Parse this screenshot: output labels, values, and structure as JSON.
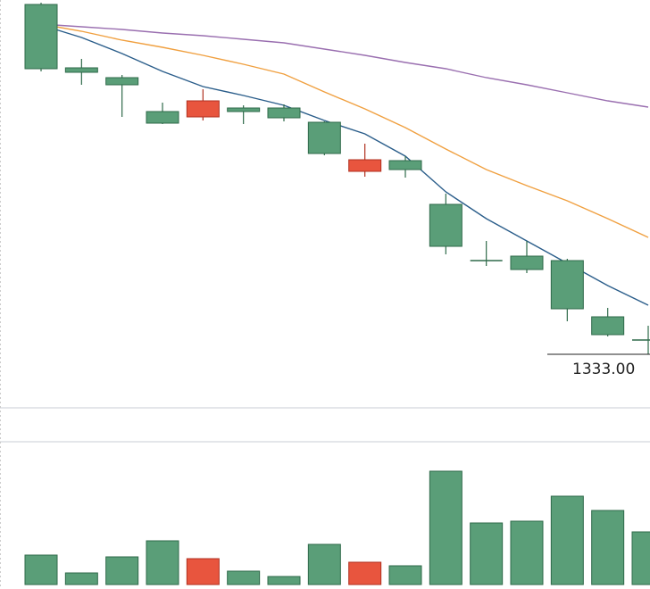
{
  "chart_data": {
    "type": "candlestick",
    "open": [
      1431,
      1413.25,
      1410.5,
      1401,
      1399.5,
      1402,
      1402,
      1398,
      1384.25,
      1387.25,
      1375,
      1359.25,
      1360.5,
      1359.25,
      1343.5,
      1337
    ],
    "close": [
      1413,
      1412,
      1408.5,
      1397.75,
      1404,
      1401,
      1399.25,
      1389.25,
      1387.5,
      1384.75,
      1363.25,
      1359.25,
      1356.75,
      1345.75,
      1338.5,
      1336.75
    ],
    "high": [
      1431.5,
      1415.75,
      1411.25,
      1403.5,
      1407.25,
      1402.75,
      1403,
      1398.25,
      1392,
      1388.5,
      1378,
      1364.75,
      1364.75,
      1359.75,
      1346,
      1341
    ],
    "low": [
      1412.25,
      1408.5,
      1399.5,
      1397.5,
      1398.5,
      1397.5,
      1398.25,
      1388.75,
      1382.75,
      1382.5,
      1361,
      1357.75,
      1355.75,
      1342.25,
      1338,
      1333
    ],
    "volume": [
      3300,
      1300,
      3100,
      4900,
      2900,
      1500,
      900,
      4500,
      2500,
      2100,
      12700,
      6900,
      7100,
      9900,
      8300,
      5900
    ],
    "up_color": "#e8553e",
    "down_color": "#5a9e78",
    "ma": [
      {
        "color": "#2a5d8a",
        "values": [
          1425.25,
          1421.75,
          1417.25,
          1412.25,
          1408,
          1405.5,
          1402.75,
          1398.5,
          1394.75,
          1388.5,
          1378.5,
          1371,
          1364.75,
          1358.5,
          1352.25,
          1346.75
        ]
      },
      {
        "color": "#f0a040",
        "values": [
          1425.5,
          1423.5,
          1421,
          1419,
          1416.75,
          1414.25,
          1411.5,
          1406.5,
          1401.75,
          1396.5,
          1390.5,
          1384.75,
          1380.25,
          1376,
          1371,
          1365.75
        ]
      },
      {
        "color": "#9a6fb0",
        "values": [
          1425.5,
          1424.75,
          1424,
          1423,
          1422.25,
          1421.25,
          1420.25,
          1418.5,
          1416.75,
          1414.75,
          1413,
          1410.5,
          1408.5,
          1406.25,
          1404,
          1402.25
        ]
      }
    ],
    "ylim": [
      1318.5,
      1432.25
    ],
    "volume_ylim": [
      0,
      15500
    ],
    "low_label": "1333.00"
  }
}
